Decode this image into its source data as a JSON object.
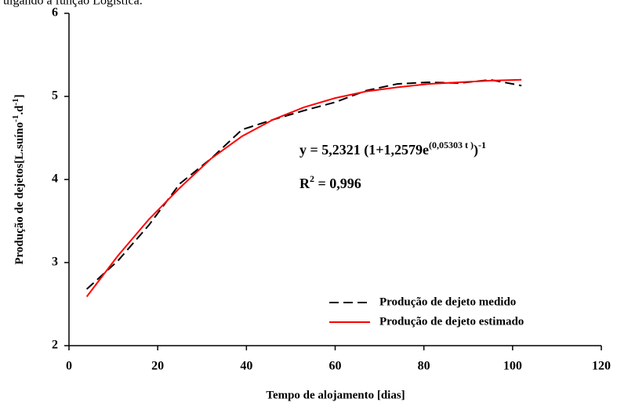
{
  "chart_data": {
    "type": "line",
    "caption": "ulgando a função Logística.",
    "x_label": "Tempo de alojamento [dias]",
    "y_label": {
      "text": "Produção de dejetos[L.suíno",
      "sup1": "-1",
      "mid": ".d",
      "sup2": "-1",
      "end": "]"
    },
    "equation": {
      "lhs": "y = 5,2321 (1+1,2579e",
      "exponent": "(0,05303 t )",
      "close": ")",
      "power": "-1"
    },
    "r2": {
      "base": "R",
      "sup": "2",
      "rest": " = 0,996"
    },
    "x": [
      4,
      11,
      18,
      25,
      32,
      39,
      46,
      53,
      60,
      67,
      74,
      81,
      88,
      95,
      102
    ],
    "series": [
      {
        "name": "Produção de dejeto medido",
        "color": "#000000",
        "dash": true,
        "values": [
          2.68,
          3.02,
          3.45,
          3.95,
          4.25,
          4.6,
          4.72,
          4.83,
          4.93,
          5.07,
          5.15,
          5.17,
          5.16,
          5.2,
          5.13
        ]
      },
      {
        "name": "Produção de dejeto estimado",
        "color": "#ff0000",
        "dash": false,
        "values": [
          2.59,
          3.08,
          3.52,
          3.9,
          4.25,
          4.52,
          4.72,
          4.87,
          4.98,
          5.06,
          5.11,
          5.15,
          5.17,
          5.19,
          5.2
        ]
      }
    ],
    "xlim": [
      0,
      120
    ],
    "xticks": [
      0,
      20,
      40,
      60,
      80,
      100,
      120
    ],
    "ylim": [
      2,
      6
    ],
    "yticks": [
      2,
      3,
      4,
      5,
      6
    ],
    "grid": false,
    "legend": "lower right"
  }
}
